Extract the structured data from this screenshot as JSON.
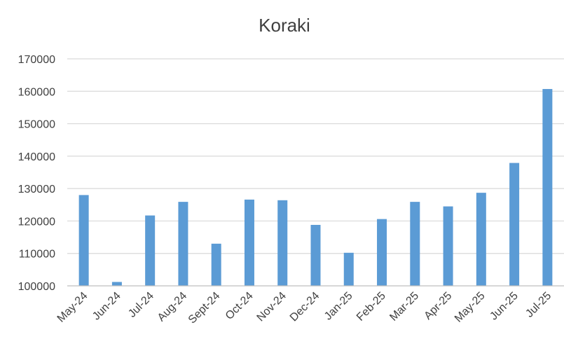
{
  "chart_data": {
    "type": "bar",
    "title": "Koraki",
    "xlabel": "",
    "ylabel": "",
    "categories": [
      "May-24",
      "Jun-24",
      "Jul-24",
      "Aug-24",
      "Sept-24",
      "Oct-24",
      "Nov-24",
      "Dec-24",
      "Jan-25",
      "Feb-25",
      "Mar-25",
      "Apr-25",
      "May-25",
      "Jun-25",
      "Jul-25"
    ],
    "series": [
      {
        "values": [
          128000,
          101200,
          121700,
          125900,
          113000,
          126600,
          126400,
          118800,
          110200,
          120600,
          125900,
          124500,
          128700,
          137900,
          160700
        ],
        "color": "#5B9BD5"
      }
    ],
    "ylim": [
      100000,
      170000
    ],
    "yticks": [
      "100000",
      "110000",
      "120000",
      "130000",
      "140000",
      "150000",
      "160000",
      "170000"
    ],
    "grid": true,
    "legend": "none"
  }
}
